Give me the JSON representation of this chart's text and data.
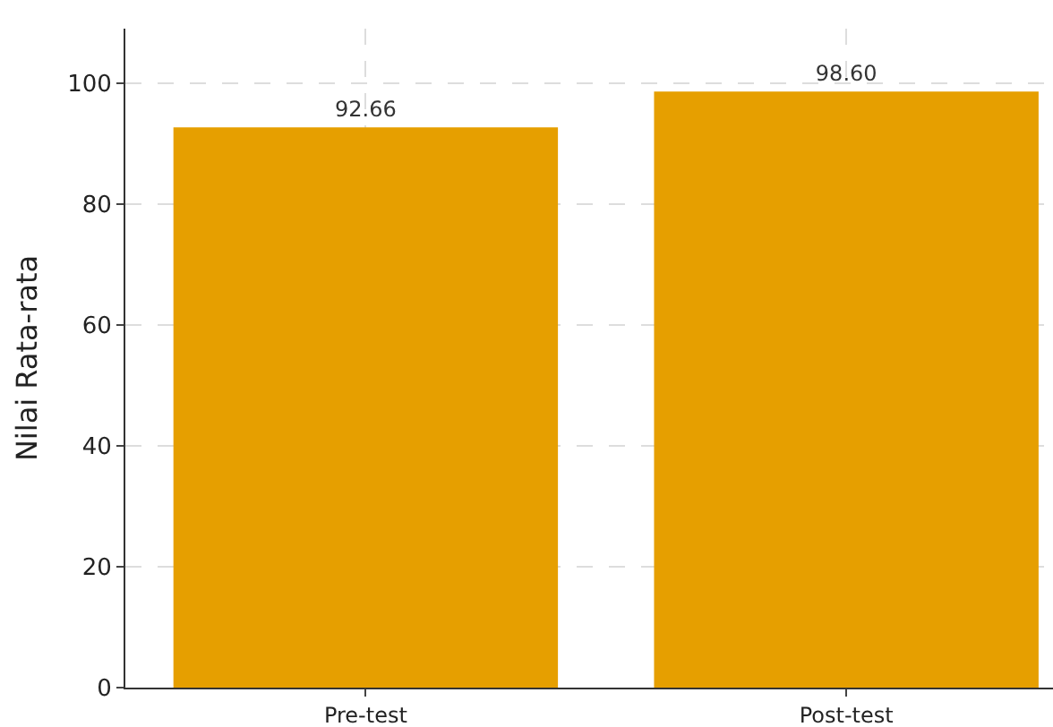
{
  "chart_data": {
    "type": "bar",
    "ylabel": "Nilai Rata-rata",
    "categories": [
      "Pre-test",
      "Post-test"
    ],
    "values": [
      92.66,
      98.6
    ],
    "value_labels": [
      "92.66",
      "98.60"
    ],
    "color": "#e69f00",
    "ylim": [
      0,
      109
    ],
    "yticks": [
      0,
      20,
      40,
      60,
      80,
      100
    ],
    "grid": true
  }
}
